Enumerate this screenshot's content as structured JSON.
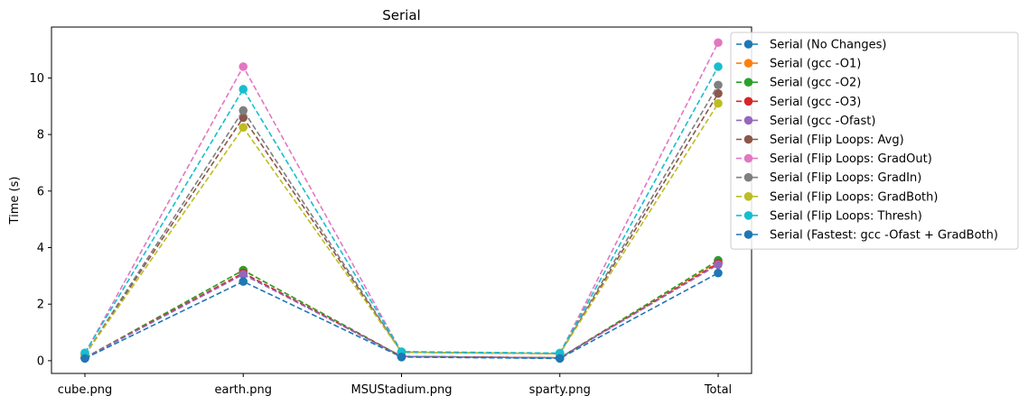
{
  "chart_data": {
    "type": "line",
    "title": "Serial",
    "xlabel": "",
    "ylabel": "Time (s)",
    "categories": [
      "cube.png",
      "earth.png",
      "MSUStadium.png",
      "sparty.png",
      "Total"
    ],
    "ylim": [
      -0.45,
      11.8
    ],
    "yticks": [
      0,
      2,
      4,
      6,
      8,
      10
    ],
    "grid": false,
    "legend_position": "outside-right",
    "line_style": "dashed",
    "marker": "circle",
    "series": [
      {
        "name": "Serial (No Changes)",
        "color": "#1f77b4",
        "values": [
          0.1,
          3.1,
          0.15,
          0.1,
          3.45
        ]
      },
      {
        "name": "Serial (gcc -O1)",
        "color": "#ff7f0e",
        "values": [
          0.1,
          3.2,
          0.15,
          0.1,
          3.5
        ]
      },
      {
        "name": "Serial (gcc -O2)",
        "color": "#2ca02c",
        "values": [
          0.1,
          3.2,
          0.15,
          0.1,
          3.55
        ]
      },
      {
        "name": "Serial (gcc -O3)",
        "color": "#d62728",
        "values": [
          0.1,
          3.1,
          0.15,
          0.1,
          3.45
        ]
      },
      {
        "name": "Serial (gcc -Ofast)",
        "color": "#9467bd",
        "values": [
          0.1,
          3.05,
          0.15,
          0.1,
          3.4
        ]
      },
      {
        "name": "Serial (Flip Loops: Avg)",
        "color": "#8c564b",
        "values": [
          0.2,
          8.6,
          0.3,
          0.25,
          9.45
        ]
      },
      {
        "name": "Serial (Flip Loops: GradOut)",
        "color": "#e377c2",
        "values": [
          0.25,
          10.4,
          0.3,
          0.25,
          11.25
        ]
      },
      {
        "name": "Serial (Flip Loops: GradIn)",
        "color": "#7f7f7f",
        "values": [
          0.2,
          8.85,
          0.3,
          0.25,
          9.75
        ]
      },
      {
        "name": "Serial (Flip Loops: GradBoth)",
        "color": "#bcbd22",
        "values": [
          0.2,
          8.25,
          0.3,
          0.25,
          9.1
        ]
      },
      {
        "name": "Serial (Flip Loops: Thresh)",
        "color": "#17becf",
        "values": [
          0.28,
          9.6,
          0.32,
          0.27,
          10.4
        ]
      },
      {
        "name": "Serial (Fastest: gcc -Ofast + GradBoth)",
        "color": "#1f77b4",
        "values": [
          0.08,
          2.8,
          0.13,
          0.08,
          3.1
        ]
      }
    ]
  }
}
